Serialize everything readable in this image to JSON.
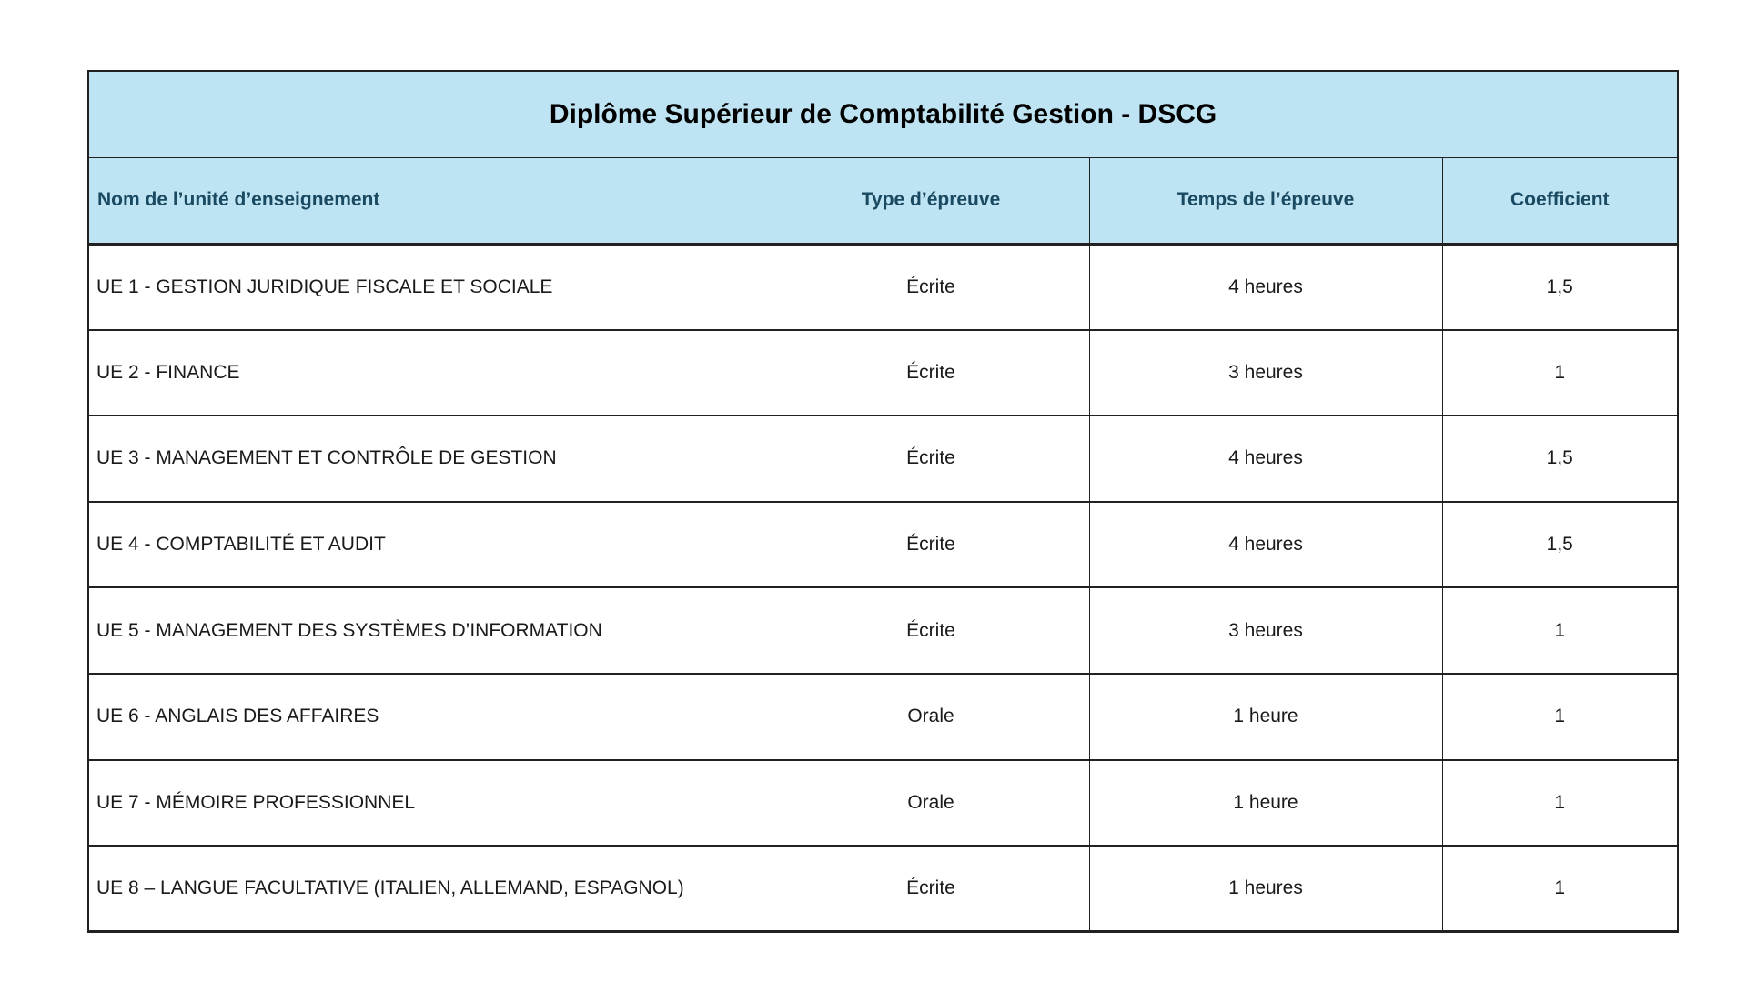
{
  "title": "Diplôme Supérieur de Comptabilité Gestion - DSCG",
  "table": {
    "columns": [
      "Nom de l’unité d’enseignement",
      "Type d’épreuve",
      "Temps de l’épreuve",
      "Coefficient"
    ],
    "rows": [
      {
        "name": "UE 1 - GESTION JURIDIQUE FISCALE ET SOCIALE",
        "type": "Écrite",
        "duration": "4 heures",
        "coefficient": "1,5"
      },
      {
        "name": "UE 2 - FINANCE",
        "type": "Écrite",
        "duration": "3 heures",
        "coefficient": "1"
      },
      {
        "name": "UE 3 - MANAGEMENT ET CONTRÔLE DE GESTION",
        "type": "Écrite",
        "duration": "4 heures",
        "coefficient": "1,5"
      },
      {
        "name": "UE 4 - COMPTABILITÉ ET AUDIT",
        "type": "Écrite",
        "duration": "4 heures",
        "coefficient": "1,5"
      },
      {
        "name": "UE 5 - MANAGEMENT DES SYSTÈMES D’INFORMATION",
        "type": "Écrite",
        "duration": "3 heures",
        "coefficient": "1"
      },
      {
        "name": "UE 6 - ANGLAIS DES AFFAIRES",
        "type": "Orale",
        "duration": "1 heure",
        "coefficient": "1"
      },
      {
        "name": "UE 7 - MÉMOIRE PROFESSIONNEL",
        "type": "Orale",
        "duration": "1 heure",
        "coefficient": "1"
      },
      {
        "name": "UE 8 – LANGUE FACULTATIVE (ITALIEN, ALLEMAND, ESPAGNOL)",
        "type": "Écrite",
        "duration": "1 heures",
        "coefficient": "1"
      }
    ]
  },
  "colors": {
    "header_background": "#bee3f2",
    "header_text": "#1a4a61",
    "title_text": "#000000",
    "body_text": "#1a1a1a",
    "border": "#212121",
    "page_background": "#ffffff"
  }
}
